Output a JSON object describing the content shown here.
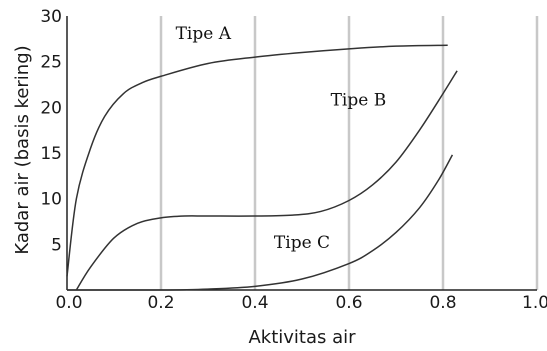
{
  "chart_data": {
    "type": "line",
    "title": "",
    "xlabel": "Aktivitas air",
    "ylabel": "Kadar air (basis kering)",
    "xlim": [
      0.0,
      1.0
    ],
    "ylim": [
      0,
      30
    ],
    "x_ticks": [
      "0.0",
      "0.2",
      "0.4",
      "0.6",
      "0.8",
      "1.0"
    ],
    "x_tick_values": [
      0.0,
      0.2,
      0.4,
      0.6,
      0.8,
      1.0
    ],
    "y_ticks": [
      "5",
      "10",
      "15",
      "20",
      "25",
      "30"
    ],
    "y_tick_values": [
      5,
      10,
      15,
      20,
      25,
      30
    ],
    "grid": "vertical",
    "colors": {
      "line": "#333333",
      "grid": "#c8c8c8",
      "axis": "#222222"
    },
    "series": [
      {
        "name": "Tipe A",
        "label_at": [
          0.29,
          27.5
        ],
        "points": [
          [
            0.0,
            1.5
          ],
          [
            0.02,
            10
          ],
          [
            0.05,
            15.5
          ],
          [
            0.08,
            19
          ],
          [
            0.12,
            21.5
          ],
          [
            0.16,
            22.7
          ],
          [
            0.2,
            23.4
          ],
          [
            0.3,
            24.8
          ],
          [
            0.4,
            25.5
          ],
          [
            0.5,
            26.0
          ],
          [
            0.6,
            26.4
          ],
          [
            0.7,
            26.7
          ],
          [
            0.81,
            26.8
          ]
        ]
      },
      {
        "name": "Tipe B",
        "label_at": [
          0.62,
          20.2
        ],
        "points": [
          [
            0.02,
            0.0
          ],
          [
            0.05,
            2.5
          ],
          [
            0.1,
            5.7
          ],
          [
            0.15,
            7.3
          ],
          [
            0.2,
            7.9
          ],
          [
            0.25,
            8.1
          ],
          [
            0.3,
            8.1
          ],
          [
            0.4,
            8.1
          ],
          [
            0.48,
            8.2
          ],
          [
            0.54,
            8.6
          ],
          [
            0.6,
            9.8
          ],
          [
            0.65,
            11.5
          ],
          [
            0.7,
            14.0
          ],
          [
            0.75,
            17.5
          ],
          [
            0.8,
            21.5
          ],
          [
            0.83,
            24.0
          ]
        ]
      },
      {
        "name": "Tipe C",
        "label_at": [
          0.5,
          4.6
        ],
        "points": [
          [
            0.0,
            0.0
          ],
          [
            0.2,
            0.0
          ],
          [
            0.3,
            0.1
          ],
          [
            0.4,
            0.4
          ],
          [
            0.5,
            1.2
          ],
          [
            0.6,
            2.9
          ],
          [
            0.65,
            4.3
          ],
          [
            0.7,
            6.3
          ],
          [
            0.75,
            9.0
          ],
          [
            0.79,
            12.0
          ],
          [
            0.82,
            14.8
          ]
        ]
      }
    ]
  }
}
